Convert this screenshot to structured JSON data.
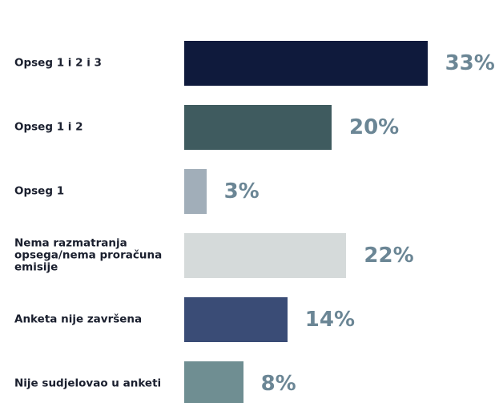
{
  "chart_data": {
    "type": "bar",
    "categories": [
      "Opseg 1 i 2 i 3",
      "Opseg 1 i 2",
      "Opseg 1",
      "Nema razmatranja opsega/nema proračuna emisije",
      "Anketa nije završena",
      "Nije sudjelovao u anketi"
    ],
    "values": [
      33,
      20,
      3,
      22,
      14,
      8
    ],
    "value_labels": [
      "33%",
      "20%",
      "3%",
      "22%",
      "14%",
      "8%"
    ],
    "colors": [
      "#0f1a3c",
      "#3f5b5f",
      "#a1aeb9",
      "#d5dada",
      "#3a4c76",
      "#6f8e92"
    ]
  }
}
